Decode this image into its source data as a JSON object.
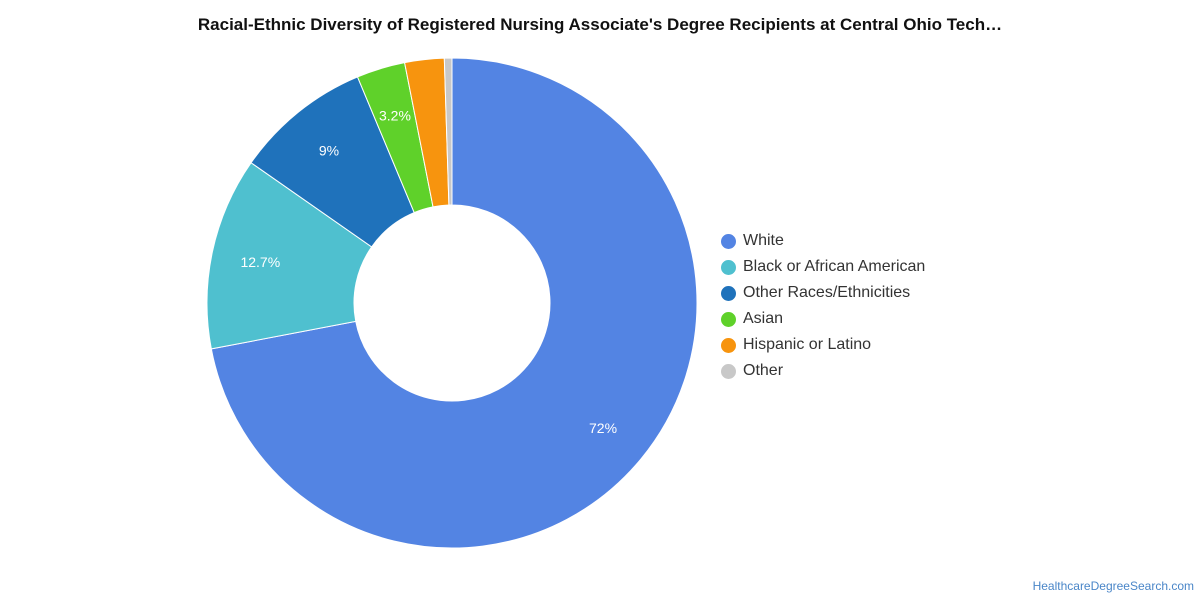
{
  "chart_data": {
    "type": "pie",
    "title": "Racial-Ethnic Diversity of Registered Nursing Associate's Degree Recipients at Central Ohio Tech…",
    "categories": [
      "White",
      "Black or African American",
      "Other Races/Ethnicities",
      "Asian",
      "Hispanic or Latino",
      "Other"
    ],
    "values": [
      72,
      12.7,
      9,
      3.2,
      2.6,
      0.5
    ],
    "data_labels": [
      "72%",
      "12.7%",
      "9%",
      "3.2%",
      "",
      ""
    ],
    "colors": [
      "#5384e3",
      "#4fc0cf",
      "#1f72bb",
      "#5fd12a",
      "#f7940e",
      "#c8c8c8"
    ],
    "legend_position": "right",
    "donut": true
  },
  "source": "HealthcareDegreeSearch.com"
}
